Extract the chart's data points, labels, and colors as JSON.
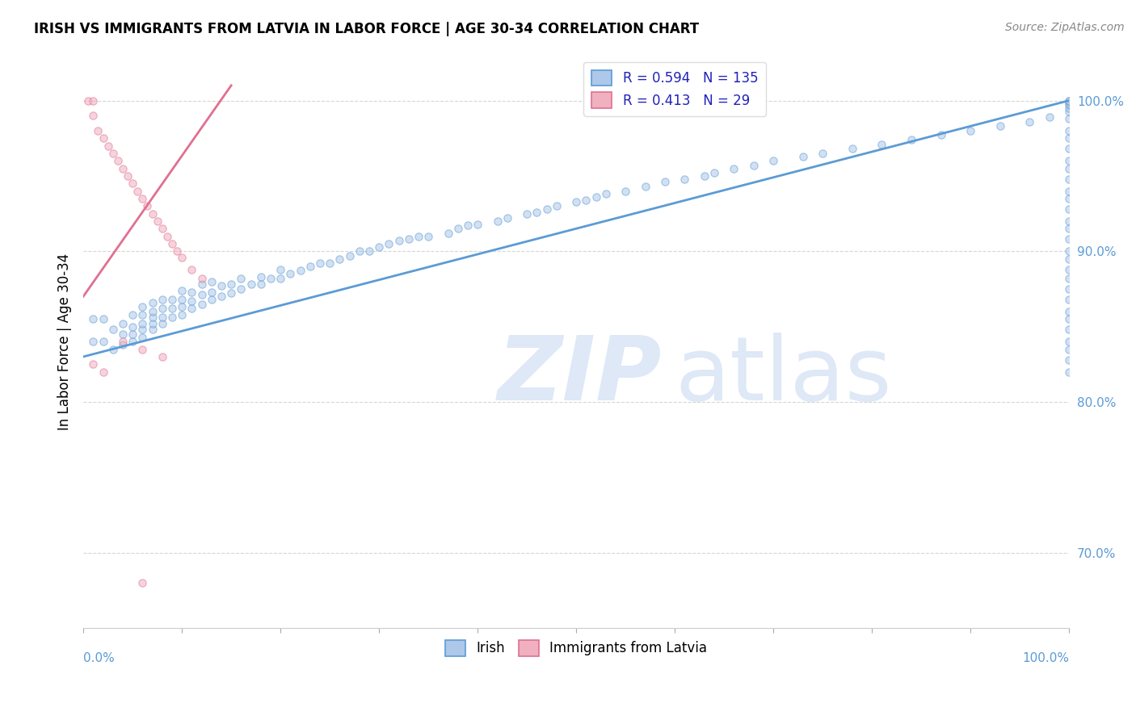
{
  "title": "IRISH VS IMMIGRANTS FROM LATVIA IN LABOR FORCE | AGE 30-34 CORRELATION CHART",
  "source": "Source: ZipAtlas.com",
  "ylabel": "In Labor Force | Age 30-34",
  "legend_items": [
    {
      "label": "Irish",
      "R": 0.594,
      "N": 135
    },
    {
      "label": "Immigrants from Latvia",
      "R": 0.413,
      "N": 29
    }
  ],
  "blue_scatter_x": [
    0.01,
    0.01,
    0.02,
    0.02,
    0.03,
    0.03,
    0.04,
    0.04,
    0.04,
    0.05,
    0.05,
    0.05,
    0.05,
    0.06,
    0.06,
    0.06,
    0.06,
    0.06,
    0.07,
    0.07,
    0.07,
    0.07,
    0.07,
    0.08,
    0.08,
    0.08,
    0.08,
    0.09,
    0.09,
    0.09,
    0.1,
    0.1,
    0.1,
    0.1,
    0.11,
    0.11,
    0.11,
    0.12,
    0.12,
    0.12,
    0.13,
    0.13,
    0.13,
    0.14,
    0.14,
    0.15,
    0.15,
    0.16,
    0.16,
    0.17,
    0.18,
    0.18,
    0.19,
    0.2,
    0.2,
    0.21,
    0.22,
    0.23,
    0.24,
    0.25,
    0.26,
    0.27,
    0.28,
    0.29,
    0.3,
    0.31,
    0.32,
    0.33,
    0.34,
    0.35,
    0.37,
    0.38,
    0.39,
    0.4,
    0.42,
    0.43,
    0.45,
    0.46,
    0.47,
    0.48,
    0.5,
    0.51,
    0.52,
    0.53,
    0.55,
    0.57,
    0.59,
    0.61,
    0.63,
    0.64,
    0.66,
    0.68,
    0.7,
    0.73,
    0.75,
    0.78,
    0.81,
    0.84,
    0.87,
    0.9,
    0.93,
    0.96,
    0.98,
    1.0,
    1.0,
    1.0,
    1.0,
    1.0,
    1.0,
    1.0,
    1.0,
    1.0,
    1.0,
    1.0,
    1.0,
    1.0,
    1.0,
    1.0,
    1.0,
    1.0,
    1.0,
    1.0,
    1.0,
    1.0,
    1.0,
    1.0,
    1.0,
    1.0,
    1.0,
    1.0,
    1.0,
    1.0,
    1.0,
    1.0,
    1.0
  ],
  "blue_scatter_y": [
    0.84,
    0.855,
    0.84,
    0.855,
    0.835,
    0.848,
    0.838,
    0.845,
    0.852,
    0.84,
    0.845,
    0.85,
    0.858,
    0.843,
    0.848,
    0.852,
    0.858,
    0.863,
    0.848,
    0.852,
    0.856,
    0.86,
    0.866,
    0.852,
    0.856,
    0.862,
    0.868,
    0.856,
    0.862,
    0.868,
    0.858,
    0.863,
    0.868,
    0.874,
    0.862,
    0.867,
    0.873,
    0.865,
    0.871,
    0.878,
    0.868,
    0.873,
    0.88,
    0.87,
    0.877,
    0.872,
    0.878,
    0.875,
    0.882,
    0.878,
    0.878,
    0.883,
    0.882,
    0.882,
    0.888,
    0.885,
    0.887,
    0.89,
    0.892,
    0.892,
    0.895,
    0.897,
    0.9,
    0.9,
    0.903,
    0.905,
    0.907,
    0.908,
    0.91,
    0.91,
    0.912,
    0.915,
    0.917,
    0.918,
    0.92,
    0.922,
    0.925,
    0.926,
    0.928,
    0.93,
    0.933,
    0.934,
    0.936,
    0.938,
    0.94,
    0.943,
    0.946,
    0.948,
    0.95,
    0.952,
    0.955,
    0.957,
    0.96,
    0.963,
    0.965,
    0.968,
    0.971,
    0.974,
    0.977,
    0.98,
    0.983,
    0.986,
    0.989,
    0.82,
    0.828,
    0.835,
    0.84,
    0.848,
    0.855,
    0.86,
    0.868,
    0.875,
    0.882,
    0.888,
    0.895,
    0.9,
    0.908,
    0.915,
    0.92,
    0.928,
    0.935,
    0.94,
    0.948,
    0.955,
    0.96,
    0.968,
    0.975,
    0.98,
    0.988,
    0.993,
    0.995,
    0.997,
    0.998,
    1.0,
    1.0
  ],
  "pink_scatter_x": [
    0.005,
    0.01,
    0.01,
    0.015,
    0.02,
    0.025,
    0.03,
    0.035,
    0.04,
    0.045,
    0.05,
    0.055,
    0.06,
    0.065,
    0.07,
    0.075,
    0.08,
    0.085,
    0.09,
    0.095,
    0.1,
    0.11,
    0.12,
    0.04,
    0.06,
    0.08,
    0.01,
    0.02,
    0.06
  ],
  "pink_scatter_y": [
    1.0,
    1.0,
    0.99,
    0.98,
    0.975,
    0.97,
    0.965,
    0.96,
    0.955,
    0.95,
    0.945,
    0.94,
    0.935,
    0.93,
    0.925,
    0.92,
    0.915,
    0.91,
    0.905,
    0.9,
    0.896,
    0.888,
    0.882,
    0.84,
    0.835,
    0.83,
    0.825,
    0.82,
    0.68
  ],
  "blue_line_x": [
    0.0,
    1.0
  ],
  "blue_line_y": [
    0.83,
    1.0
  ],
  "pink_line_x": [
    0.0,
    0.15
  ],
  "pink_line_y": [
    0.87,
    1.01
  ],
  "xlim": [
    0.0,
    1.0
  ],
  "ylim": [
    0.65,
    1.03
  ],
  "ytick_vals": [
    0.7,
    0.8,
    0.9,
    1.0
  ],
  "scatter_alpha": 0.55,
  "scatter_size": 45,
  "blue_color": "#5b9bd5",
  "pink_color": "#e07090",
  "blue_fill": "#adc8e8",
  "pink_fill": "#f0b0c0"
}
